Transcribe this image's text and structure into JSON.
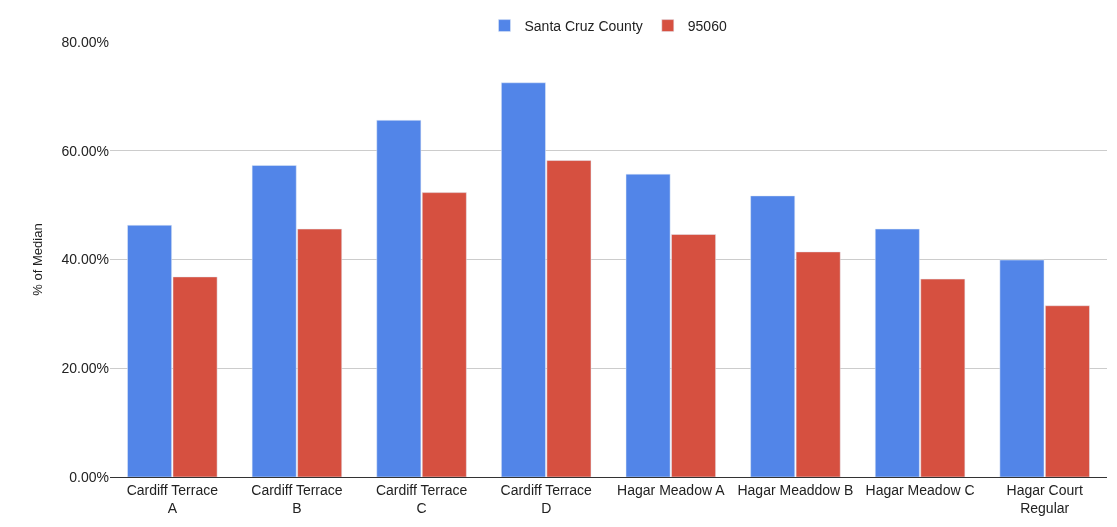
{
  "chart_data": {
    "type": "bar",
    "ylabel": "% of Median",
    "categories": [
      "Cardiff Terrace A",
      "Cardiff Terrace B",
      "Cardiff Terrace C",
      "Cardiff Terrace D",
      "Hagar Meadow A",
      "Hagar Meaddow B",
      "Hagar Meadow C",
      "Hagar Court Regular"
    ],
    "series": [
      {
        "name": "Santa Cruz County",
        "color": "#5285e8",
        "values": [
          46.3,
          57.3,
          65.6,
          72.5,
          55.7,
          51.7,
          45.6,
          39.9
        ]
      },
      {
        "name": "95060",
        "color": "#d65040",
        "values": [
          36.8,
          45.6,
          52.3,
          58.2,
          44.6,
          41.4,
          36.4,
          31.5
        ]
      }
    ],
    "ylim": [
      0,
      80
    ],
    "yticks": [
      {
        "value": 0,
        "label": "0.00%"
      },
      {
        "value": 20,
        "label": "20.00%"
      },
      {
        "value": 40,
        "label": "40.00%"
      },
      {
        "value": 60,
        "label": "60.00%"
      },
      {
        "value": 80,
        "label": "80.00%"
      }
    ],
    "grid": "y",
    "legend": "top"
  }
}
